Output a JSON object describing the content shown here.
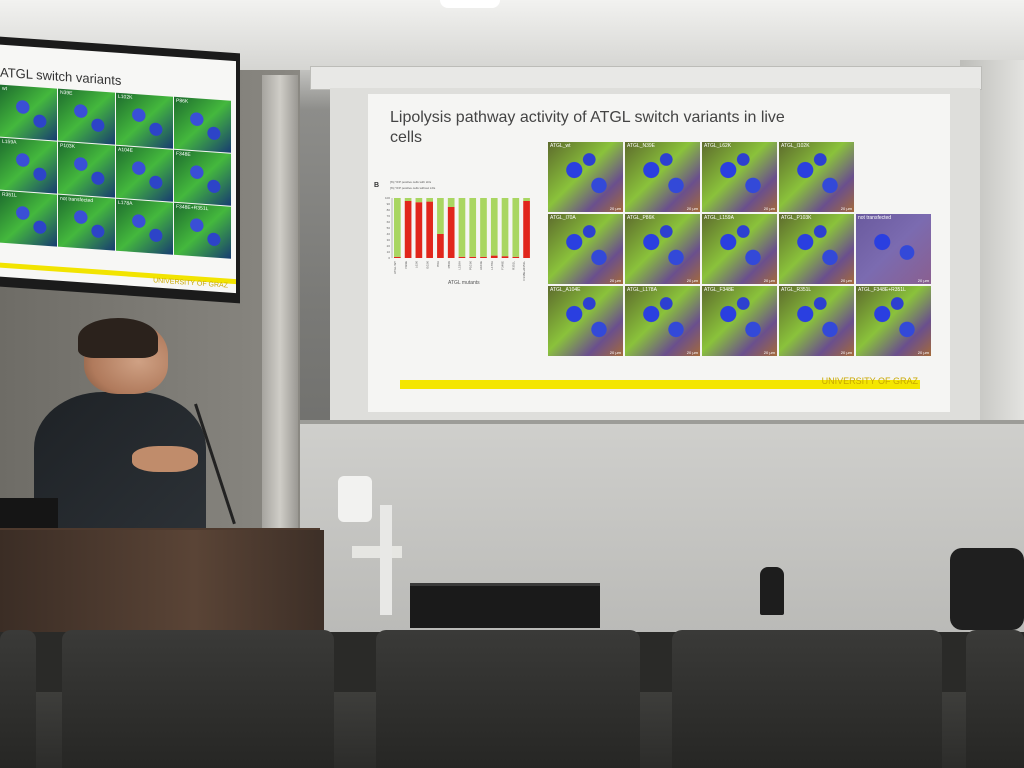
{
  "monitor": {
    "title": "ATGL switch variants",
    "tiles": [
      "wt",
      "N39E",
      "L102K",
      "P86K",
      "L159A",
      "P103K",
      "A104E",
      "F348E",
      "R351L",
      "not transfected",
      "L178A",
      "F348E+R351L"
    ],
    "university": "UNIVERSITY OF GRAZ"
  },
  "slide": {
    "title": "Lipolysis pathway activity of ATGL switch variants in live cells",
    "panel_label": "B",
    "legend_red": "[%] YFP positive cells with LDs",
    "legend_green": "[%] YFP positive cells without LDs",
    "xlabel": "ATGL mutants",
    "university": "UNIVERSITY OF GRAZ",
    "micrographs": [
      {
        "label": "ATGL_wt",
        "scale": "20 µm"
      },
      {
        "label": "ATGL_N39E",
        "scale": "20 µm"
      },
      {
        "label": "ATGL_L62K",
        "scale": "20 µm"
      },
      {
        "label": "ATGL_I102K",
        "scale": "20 µm"
      },
      {
        "label": "",
        "scale": ""
      },
      {
        "label": "ATGL_I70A",
        "scale": "20 µm"
      },
      {
        "label": "ATGL_P86K",
        "scale": "20 µm"
      },
      {
        "label": "ATGL_L159A",
        "scale": "20 µm"
      },
      {
        "label": "ATGL_P103K",
        "scale": "20 µm"
      },
      {
        "label": "not transfected",
        "scale": "20 µm"
      },
      {
        "label": "ATGL_A104E",
        "scale": "20 µm"
      },
      {
        "label": "ATGL_L178A",
        "scale": "20 µm"
      },
      {
        "label": "ATGL_F348E",
        "scale": "20 µm"
      },
      {
        "label": "ATGL_R351L",
        "scale": "20 µm"
      },
      {
        "label": "ATGL_F348E+R351L",
        "scale": "20 µm"
      }
    ]
  },
  "chart_data": {
    "type": "bar",
    "categories": [
      "ATGL WT",
      "N39E",
      "L62K",
      "I102K",
      "I70A",
      "P86K",
      "L159A",
      "P103K",
      "A104E",
      "L178A",
      "F348E",
      "R351L",
      "F348E+R351L"
    ],
    "series": [
      {
        "name": "[%] YFP positive cells with LDs",
        "color": "#e1261c",
        "values": [
          2,
          95,
          93,
          94,
          40,
          85,
          2,
          2,
          2,
          4,
          3,
          2,
          95
        ]
      },
      {
        "name": "[%] YFP positive cells without LDs",
        "color": "#a9d661",
        "values": [
          98,
          5,
          7,
          6,
          60,
          15,
          98,
          98,
          98,
          96,
          97,
          98,
          5
        ]
      }
    ],
    "stacked": true,
    "ylim": [
      0,
      100
    ],
    "yticks": [
      0,
      10,
      20,
      30,
      40,
      50,
      60,
      70,
      80,
      90,
      100
    ],
    "xlabel": "ATGL mutants"
  }
}
